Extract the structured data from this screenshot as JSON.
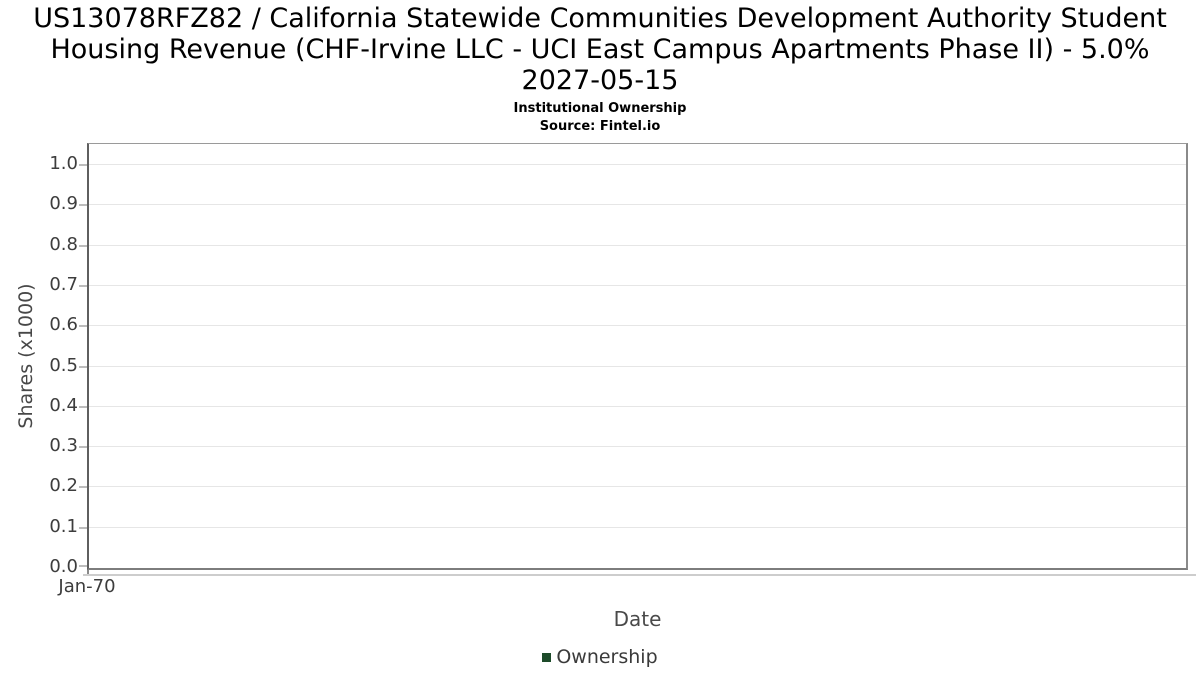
{
  "chart_data": {
    "type": "line",
    "title": "US13078RFZ82 / California Statewide Communities Development Authority Student Housing Revenue (CHF-Irvine LLC - UCI East Campus Apartments Phase II) - 5.0% 2027-05-15",
    "title_lines": [
      "US13078RFZ82 / California Statewide Communities Development Authority Student",
      "Housing Revenue (CHF-Irvine LLC - UCI East Campus Apartments Phase II) - 5.0%",
      "2027-05-15"
    ],
    "subtitle": "Institutional Ownership",
    "source": "Source: Fintel.io",
    "xlabel": "Date",
    "ylabel": "Shares (x1000)",
    "x_ticks": [
      "Jan-70"
    ],
    "y_ticks": [
      "0.0",
      "0.1",
      "0.2",
      "0.3",
      "0.4",
      "0.5",
      "0.6",
      "0.7",
      "0.8",
      "0.9",
      "1.0"
    ],
    "ylim": [
      0,
      1.05
    ],
    "grid": true,
    "legend_position": "bottom",
    "series": [
      {
        "name": "Ownership",
        "color": "#1d4b2a",
        "x": [],
        "values": []
      }
    ]
  },
  "colors": {
    "series_green": "#1d4b2a",
    "gridline": "#e6e6e6",
    "plot_frame": "#808080",
    "tick_text": "#3d3d3d",
    "axis_label_text": "#4a4a4a",
    "title_text": "#000000"
  }
}
